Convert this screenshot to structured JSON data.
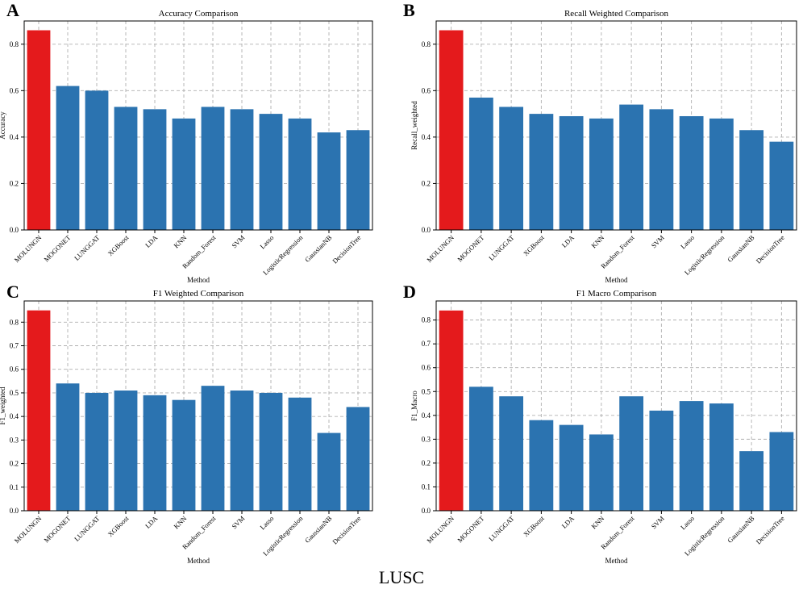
{
  "figure": {
    "caption": "LUSC",
    "colors": {
      "highlight": "#e41a1c",
      "bar": "#2b73b0",
      "grid": "#b0b0b0"
    }
  },
  "chart_data": [
    {
      "panel": "A",
      "type": "bar",
      "title": "Accuracy Comparison",
      "xlabel": "Method",
      "ylabel": "Accuracy",
      "ylim": [
        0,
        0.9
      ],
      "yticks": [
        "0.0",
        "0.2",
        "0.4",
        "0.6",
        "0.8"
      ],
      "categories": [
        "MOLUNGN",
        "MOGONET",
        "LUNGGAT",
        "XGBoost",
        "LDA",
        "KNN",
        "Random_Forest",
        "SVM",
        "Lasso",
        "LogisticRegression",
        "GaussianNB",
        "DecisionTree"
      ],
      "values": [
        0.86,
        0.62,
        0.6,
        0.53,
        0.52,
        0.48,
        0.53,
        0.52,
        0.5,
        0.48,
        0.42,
        0.43
      ]
    },
    {
      "panel": "B",
      "type": "bar",
      "title": "Recall Weighted Comparison",
      "xlabel": "Method",
      "ylabel": "Recall_weighted",
      "ylim": [
        0,
        0.9
      ],
      "yticks": [
        "0.0",
        "0.2",
        "0.4",
        "0.6",
        "0.8"
      ],
      "categories": [
        "MOLUNGN",
        "MOGONET",
        "LUNGGAT",
        "XGBoost",
        "LDA",
        "KNN",
        "Random_Forest",
        "SVM",
        "Lasso",
        "LogisticRegression",
        "GaussianNB",
        "DecisionTree"
      ],
      "values": [
        0.86,
        0.57,
        0.53,
        0.5,
        0.49,
        0.48,
        0.54,
        0.52,
        0.49,
        0.48,
        0.43,
        0.38
      ]
    },
    {
      "panel": "C",
      "type": "bar",
      "title": "F1 Weighted Comparison",
      "xlabel": "Method",
      "ylabel": "F1_weighted",
      "ylim": [
        0,
        0.89
      ],
      "yticks": [
        "0.0",
        "0.1",
        "0.2",
        "0.3",
        "0.4",
        "0.5",
        "0.6",
        "0.7",
        "0.8"
      ],
      "categories": [
        "MOLUNGN",
        "MOGONET",
        "LUNGGAT",
        "XGBoost",
        "LDA",
        "KNN",
        "Random_Forest",
        "SVM",
        "Lasso",
        "LogisticRegression",
        "GaussianNB",
        "DecisionTree"
      ],
      "values": [
        0.85,
        0.54,
        0.5,
        0.51,
        0.49,
        0.47,
        0.53,
        0.51,
        0.5,
        0.48,
        0.33,
        0.44
      ]
    },
    {
      "panel": "D",
      "type": "bar",
      "title": "F1 Macro Comparison",
      "xlabel": "Method",
      "ylabel": "F1_Macro",
      "ylim": [
        0,
        0.88
      ],
      "yticks": [
        "0.0",
        "0.1",
        "0.2",
        "0.3",
        "0.4",
        "0.5",
        "0.6",
        "0.7",
        "0.8"
      ],
      "categories": [
        "MOLUNGN",
        "MOGONET",
        "LUNGGAT",
        "XGBoost",
        "LDA",
        "KNN",
        "Random_Forest",
        "SVM",
        "Lasso",
        "LogisticRegression",
        "GaussianNB",
        "DecisionTree"
      ],
      "values": [
        0.84,
        0.52,
        0.48,
        0.38,
        0.36,
        0.32,
        0.48,
        0.42,
        0.46,
        0.45,
        0.25,
        0.33
      ]
    }
  ]
}
